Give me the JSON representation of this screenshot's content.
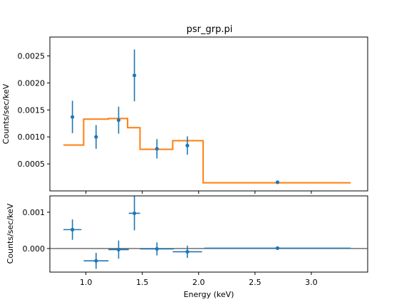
{
  "chart_data": {
    "title": "psr_grp.pi",
    "x_label": "Energy (keV)",
    "x_range": [
      0.68,
      3.5
    ],
    "x_ticks": [
      "1.0",
      "1.5",
      "2.0",
      "2.5",
      "3.0"
    ],
    "colors": {
      "data": "#1f77b4",
      "model": "#ff7f0e",
      "zero_line": "#555555",
      "axes": "#000000"
    },
    "panels": [
      {
        "type": "scatter",
        "y_label": "Counts/sec/keV",
        "y_range": [
          0.0,
          0.00285
        ],
        "y_ticks": [
          "0.0005",
          "0.0010",
          "0.0015",
          "0.0020",
          "0.0025"
        ],
        "data_series": {
          "x": [
            0.88,
            1.09,
            1.29,
            1.43,
            1.63,
            1.9,
            2.7
          ],
          "y": [
            0.00137,
            0.001,
            0.00131,
            0.00214,
            0.00078,
            0.00084,
            0.00016
          ],
          "yerr": [
            0.0003,
            0.00022,
            0.00025,
            0.00048,
            0.00018,
            0.00017,
            3e-05
          ],
          "xerr": [
            0.0,
            0.0,
            0.0,
            0.0,
            0.0,
            0.0,
            0.0
          ]
        },
        "model_step": {
          "edges": [
            0.8,
            0.98,
            1.2,
            1.37,
            1.48,
            1.77,
            2.04,
            3.35
          ],
          "values": [
            0.00085,
            0.00133,
            0.00134,
            0.00117,
            0.00077,
            0.00093,
            0.00015
          ]
        }
      },
      {
        "type": "scatter",
        "y_label": "Counts/sec/keV",
        "y_range": [
          -0.00065,
          0.00145
        ],
        "y_ticks": [
          "0.000",
          "0.001"
        ],
        "zero_line": 0.0,
        "data_series": {
          "x": [
            0.88,
            1.09,
            1.29,
            1.43,
            1.63,
            1.9,
            2.7
          ],
          "y": [
            0.00052,
            -0.00034,
            -3e-05,
            0.00097,
            -1e-05,
            -9e-05,
            1e-05
          ],
          "yerr": [
            0.00028,
            0.00022,
            0.00025,
            0.00047,
            0.00018,
            0.00017,
            3e-05
          ],
          "xerr": [
            0.08,
            0.11,
            0.09,
            0.05,
            0.15,
            0.13,
            0.65
          ]
        }
      }
    ]
  }
}
